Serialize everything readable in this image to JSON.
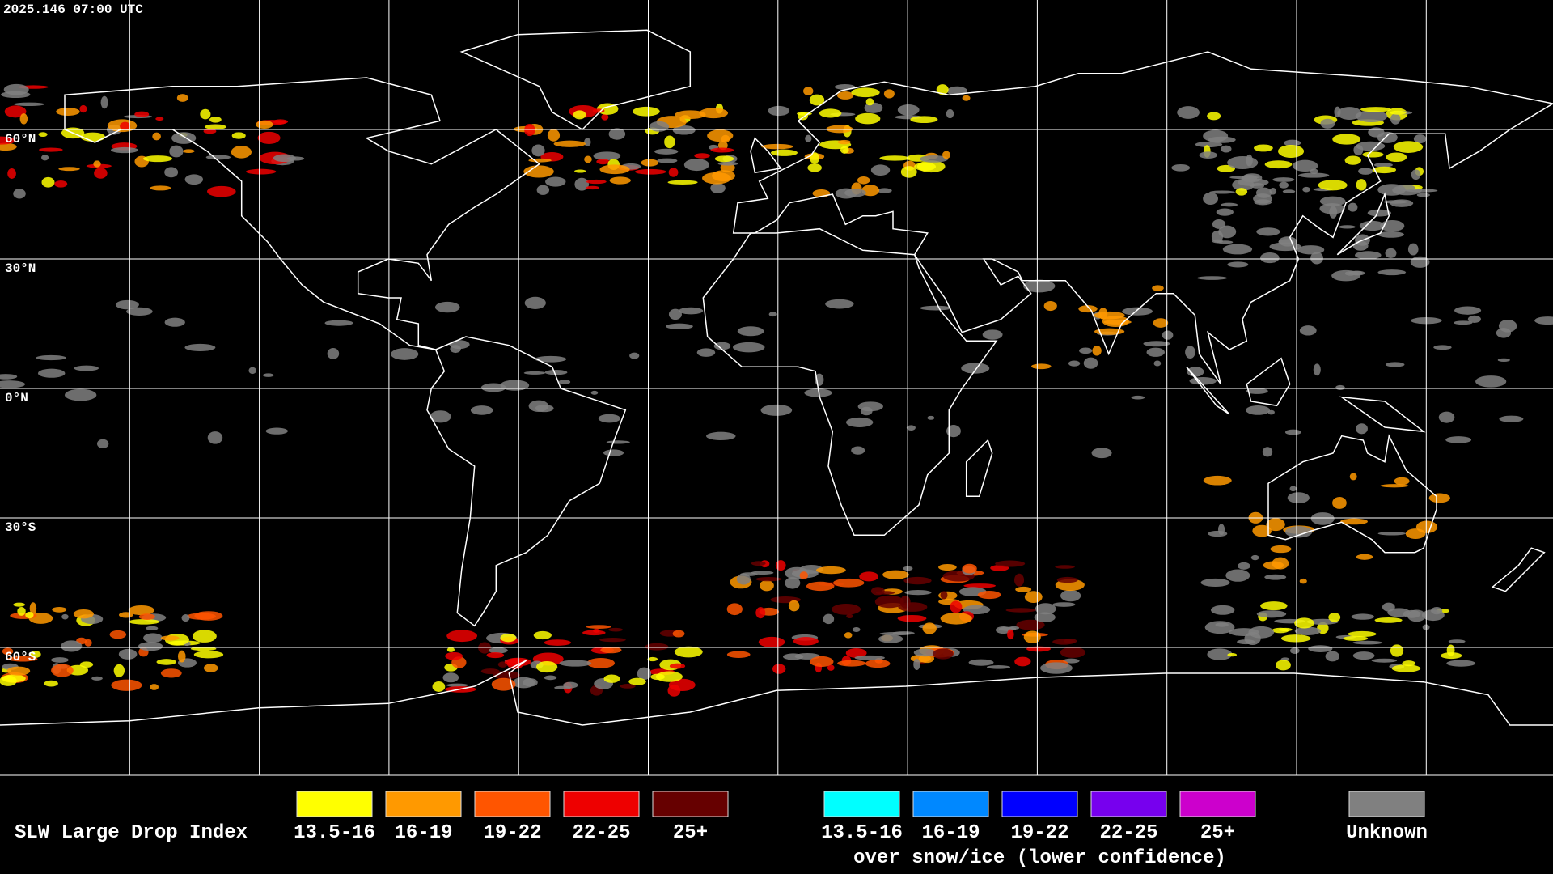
{
  "header": {
    "timestamp": "2025.146 07:00 UTC"
  },
  "map": {
    "lat_labels": [
      "60°N",
      "30°N",
      "0°N",
      "30°S",
      "60°S"
    ]
  },
  "legend": {
    "title": "SLW Large Drop Index",
    "groups": [
      {
        "items": [
          {
            "label": "13.5-16",
            "color": "#ffff00"
          },
          {
            "label": "16-19",
            "color": "#ff9900"
          },
          {
            "label": "19-22",
            "color": "#ff5500"
          },
          {
            "label": "22-25",
            "color": "#ee0000"
          },
          {
            "label": "25+",
            "color": "#660000"
          }
        ]
      },
      {
        "items": [
          {
            "label": "13.5-16",
            "color": "#00ffff"
          },
          {
            "label": "16-19",
            "color": "#0088ff"
          },
          {
            "label": "19-22",
            "color": "#0000ff"
          },
          {
            "label": "22-25",
            "color": "#7700ee"
          },
          {
            "label": "25+",
            "color": "#cc00cc"
          }
        ],
        "caption": "over snow/ice (lower confidence)"
      },
      {
        "items": [
          {
            "label": "Unknown",
            "color": "#808080"
          }
        ]
      }
    ]
  }
}
